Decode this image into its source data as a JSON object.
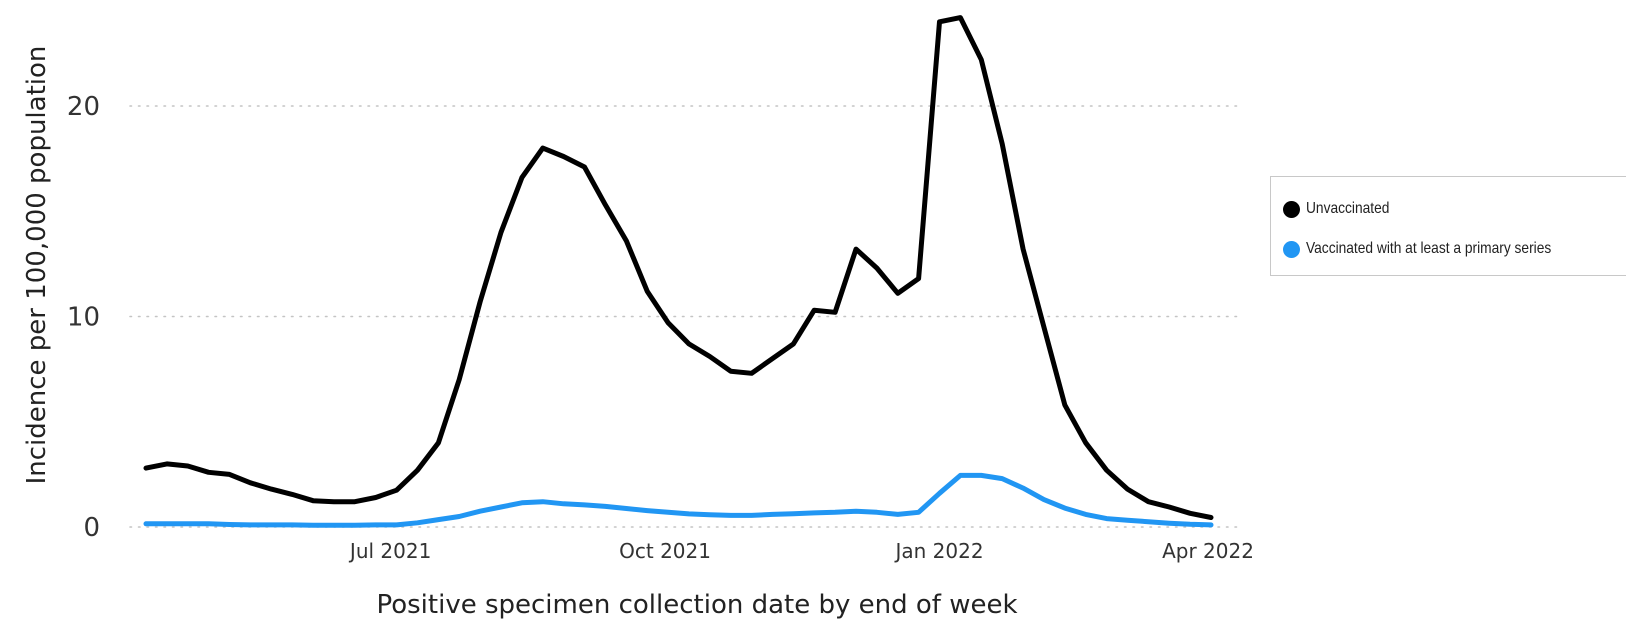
{
  "chart_data": {
    "type": "line",
    "title": "",
    "xlabel": "Positive specimen collection date by end of week",
    "ylabel": "Incidence per 100,000 population",
    "ylim": [
      0,
      24.5
    ],
    "yticks": [
      0,
      10,
      20
    ],
    "xticks": [
      {
        "label": "Jul 2021",
        "date": "2021-07-01"
      },
      {
        "label": "Oct 2021",
        "date": "2021-10-01"
      },
      {
        "label": "Jan 2022",
        "date": "2022-01-01"
      },
      {
        "label": "Apr 2022",
        "date": "2022-04-01"
      }
    ],
    "grid": "horizontal dotted",
    "legend_position": "right",
    "x": [
      "2021-04-10",
      "2021-04-17",
      "2021-04-24",
      "2021-05-01",
      "2021-05-08",
      "2021-05-15",
      "2021-05-22",
      "2021-05-29",
      "2021-06-05",
      "2021-06-12",
      "2021-06-19",
      "2021-06-26",
      "2021-07-03",
      "2021-07-10",
      "2021-07-17",
      "2021-07-24",
      "2021-07-31",
      "2021-08-07",
      "2021-08-14",
      "2021-08-21",
      "2021-08-28",
      "2021-09-04",
      "2021-09-11",
      "2021-09-18",
      "2021-09-25",
      "2021-10-02",
      "2021-10-09",
      "2021-10-16",
      "2021-10-23",
      "2021-10-30",
      "2021-11-06",
      "2021-11-13",
      "2021-11-20",
      "2021-11-27",
      "2021-12-04",
      "2021-12-11",
      "2021-12-18",
      "2021-12-25",
      "2022-01-01",
      "2022-01-08",
      "2022-01-15",
      "2022-01-22",
      "2022-01-29",
      "2022-02-05",
      "2022-02-12",
      "2022-02-19",
      "2022-02-26",
      "2022-03-05",
      "2022-03-12",
      "2022-03-19",
      "2022-03-26",
      "2022-04-02"
    ],
    "series": [
      {
        "name": "Unvaccinated",
        "color": "#000000",
        "values": [
          2.8,
          3.0,
          2.9,
          2.6,
          2.5,
          2.1,
          1.8,
          1.55,
          1.25,
          1.2,
          1.2,
          1.4,
          1.75,
          2.7,
          4.0,
          7.0,
          10.7,
          14.0,
          16.6,
          18.0,
          17.6,
          17.1,
          15.3,
          13.6,
          11.2,
          9.7,
          8.7,
          8.1,
          7.4,
          7.3,
          8.0,
          8.7,
          10.3,
          10.2,
          13.2,
          12.3,
          11.1,
          11.8,
          24.0,
          24.2,
          22.2,
          18.2,
          13.2,
          9.5,
          5.8,
          4.0,
          2.7,
          1.8,
          1.2,
          0.95,
          0.65,
          0.45
        ]
      },
      {
        "name": "Vaccinated with at least a primary series",
        "color": "#2196f3",
        "values": [
          0.15,
          0.15,
          0.15,
          0.15,
          0.12,
          0.1,
          0.1,
          0.1,
          0.08,
          0.08,
          0.08,
          0.1,
          0.1,
          0.2,
          0.35,
          0.5,
          0.75,
          0.95,
          1.15,
          1.2,
          1.1,
          1.05,
          0.98,
          0.88,
          0.78,
          0.7,
          0.62,
          0.58,
          0.55,
          0.55,
          0.6,
          0.63,
          0.67,
          0.7,
          0.75,
          0.7,
          0.6,
          0.7,
          1.6,
          2.45,
          2.45,
          2.3,
          1.85,
          1.3,
          0.9,
          0.6,
          0.4,
          0.32,
          0.25,
          0.18,
          0.13,
          0.1
        ]
      }
    ]
  }
}
